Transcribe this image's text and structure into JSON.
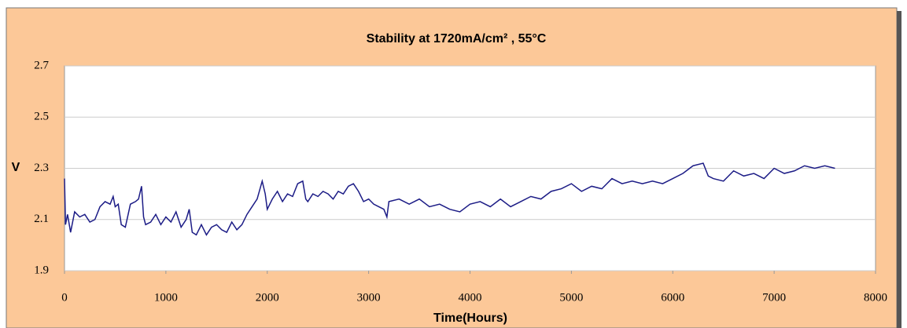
{
  "chart_data": {
    "type": "line",
    "title": "Stability at 1720mA/cm² , 55°C",
    "x_label": "Time(Hours)",
    "y_label": "V",
    "x": [
      0,
      10,
      30,
      60,
      100,
      150,
      200,
      250,
      300,
      350,
      400,
      450,
      480,
      500,
      530,
      560,
      600,
      650,
      700,
      730,
      760,
      780,
      800,
      850,
      900,
      950,
      1000,
      1050,
      1100,
      1150,
      1200,
      1230,
      1260,
      1300,
      1350,
      1400,
      1450,
      1500,
      1550,
      1600,
      1650,
      1700,
      1750,
      1800,
      1850,
      1900,
      1950,
      1980,
      2000,
      2050,
      2100,
      2150,
      2200,
      2250,
      2300,
      2350,
      2380,
      2400,
      2450,
      2500,
      2550,
      2600,
      2650,
      2700,
      2750,
      2800,
      2850,
      2900,
      2950,
      3000,
      3050,
      3100,
      3150,
      3180,
      3200,
      3300,
      3400,
      3500,
      3600,
      3700,
      3800,
      3900,
      4000,
      4100,
      4200,
      4300,
      4400,
      4500,
      4600,
      4700,
      4800,
      4900,
      5000,
      5100,
      5200,
      5300,
      5400,
      5500,
      5600,
      5700,
      5800,
      5900,
      6000,
      6100,
      6200,
      6300,
      6350,
      6400,
      6500,
      6600,
      6700,
      6800,
      6900,
      7000,
      7100,
      7200,
      7300,
      7400,
      7500,
      7600
    ],
    "series": [
      {
        "name": "V",
        "color": "#1c1c86",
        "values": [
          2.26,
          2.08,
          2.12,
          2.05,
          2.13,
          2.11,
          2.12,
          2.09,
          2.1,
          2.15,
          2.17,
          2.16,
          2.19,
          2.15,
          2.16,
          2.08,
          2.07,
          2.16,
          2.17,
          2.18,
          2.23,
          2.11,
          2.08,
          2.09,
          2.12,
          2.08,
          2.11,
          2.09,
          2.13,
          2.07,
          2.1,
          2.14,
          2.05,
          2.04,
          2.08,
          2.04,
          2.07,
          2.08,
          2.06,
          2.05,
          2.09,
          2.06,
          2.08,
          2.12,
          2.15,
          2.18,
          2.25,
          2.2,
          2.14,
          2.18,
          2.21,
          2.17,
          2.2,
          2.19,
          2.24,
          2.25,
          2.18,
          2.17,
          2.2,
          2.19,
          2.21,
          2.2,
          2.18,
          2.21,
          2.2,
          2.23,
          2.24,
          2.21,
          2.17,
          2.18,
          2.16,
          2.15,
          2.14,
          2.11,
          2.17,
          2.18,
          2.16,
          2.18,
          2.15,
          2.16,
          2.14,
          2.13,
          2.16,
          2.17,
          2.15,
          2.18,
          2.15,
          2.17,
          2.19,
          2.18,
          2.21,
          2.22,
          2.24,
          2.21,
          2.23,
          2.22,
          2.26,
          2.24,
          2.25,
          2.24,
          2.25,
          2.24,
          2.26,
          2.28,
          2.31,
          2.32,
          2.27,
          2.26,
          2.25,
          2.29,
          2.27,
          2.28,
          2.26,
          2.3,
          2.28,
          2.29,
          2.31,
          2.3,
          2.31,
          2.3
        ]
      }
    ],
    "xlim": [
      0,
      8000
    ],
    "xticks": [
      0,
      1000,
      2000,
      3000,
      4000,
      5000,
      6000,
      7000,
      8000
    ],
    "ylim": [
      1.9,
      2.7
    ],
    "yticks": [
      1.9,
      2.1,
      2.3,
      2.5,
      2.7
    ],
    "grid": true
  }
}
